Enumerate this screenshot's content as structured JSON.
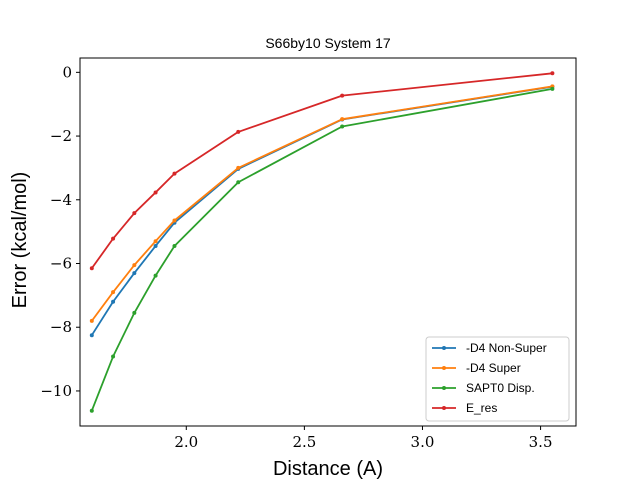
{
  "chart_data": {
    "type": "line",
    "title": "S66by10 System 17",
    "xlabel": "Distance (A)",
    "ylabel": "Error (kcal/mol)",
    "xlim": [
      1.55,
      3.65
    ],
    "ylim": [
      -11.1,
      0.45
    ],
    "xticks": [
      2.0,
      2.5,
      3.0,
      3.5
    ],
    "xtick_labels": [
      "2.0",
      "2.5",
      "3.0",
      "3.5"
    ],
    "yticks": [
      0,
      -2,
      -4,
      -6,
      -8,
      -10
    ],
    "ytick_labels": [
      "0",
      "−2",
      "−4",
      "−6",
      "−8",
      "−10"
    ],
    "grid": false,
    "legend_position": "lower-right",
    "x": [
      1.6,
      1.69,
      1.78,
      1.87,
      1.95,
      2.22,
      2.66,
      3.55
    ],
    "series": [
      {
        "name": "-D4 Non-Super",
        "color": "#1f77b4",
        "values": [
          -8.25,
          -7.2,
          -6.3,
          -5.45,
          -4.72,
          -3.03,
          -1.48,
          -0.45
        ]
      },
      {
        "name": "-D4 Super",
        "color": "#ff7f0e",
        "values": [
          -7.8,
          -6.9,
          -6.05,
          -5.3,
          -4.65,
          -3.0,
          -1.47,
          -0.44
        ]
      },
      {
        "name": "SAPT0 Disp.",
        "color": "#2ca02c",
        "values": [
          -10.62,
          -8.92,
          -7.55,
          -6.38,
          -5.45,
          -3.45,
          -1.7,
          -0.52
        ]
      },
      {
        "name": "E_res",
        "color": "#d62728",
        "values": [
          -6.15,
          -5.22,
          -4.42,
          -3.77,
          -3.18,
          -1.87,
          -0.73,
          -0.03
        ]
      }
    ]
  }
}
